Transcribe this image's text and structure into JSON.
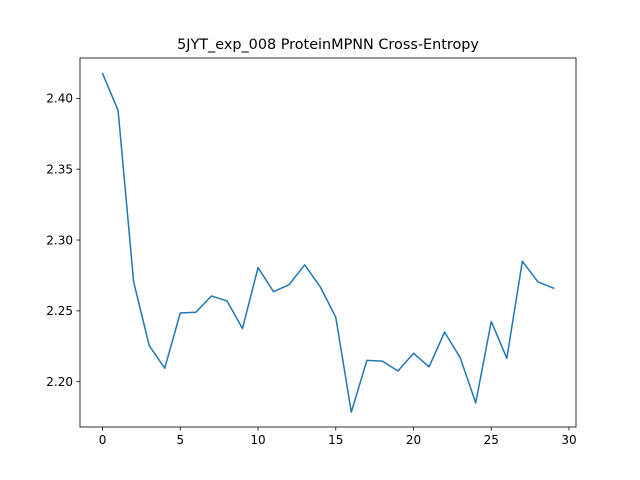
{
  "chart_data": {
    "type": "line",
    "title": "5JYT_exp_008 ProteinMPNN Cross-Entropy",
    "xlabel": "",
    "ylabel": "",
    "xlim": [
      -1.45,
      30.45
    ],
    "ylim": [
      2.168,
      2.4285
    ],
    "grid": false,
    "x_ticks": [
      0,
      5,
      10,
      15,
      20,
      25,
      30
    ],
    "x_tick_labels": [
      "0",
      "5",
      "10",
      "15",
      "20",
      "25",
      "30"
    ],
    "y_ticks": [
      2.2,
      2.25,
      2.3,
      2.35,
      2.4
    ],
    "y_tick_labels": [
      "2.20",
      "2.25",
      "2.30",
      "2.35",
      "2.40"
    ],
    "series": [
      {
        "color": "#1f77b4",
        "x": [
          0,
          1,
          2,
          3,
          4,
          5,
          6,
          7,
          8,
          9,
          10,
          11,
          12,
          13,
          14,
          15,
          16,
          17,
          18,
          19,
          20,
          21,
          22,
          23,
          24,
          25,
          26,
          27,
          28,
          29
        ],
        "values": [
          2.4175,
          2.3915,
          2.2705,
          2.2255,
          2.2095,
          2.2485,
          2.249,
          2.2605,
          2.257,
          2.2375,
          2.2805,
          2.2635,
          2.2685,
          2.2825,
          2.267,
          2.2455,
          2.1785,
          2.215,
          2.2145,
          2.2075,
          2.22,
          2.2105,
          2.235,
          2.217,
          2.185,
          2.2425,
          2.2165,
          2.285,
          2.2705,
          2.266
        ]
      }
    ]
  }
}
